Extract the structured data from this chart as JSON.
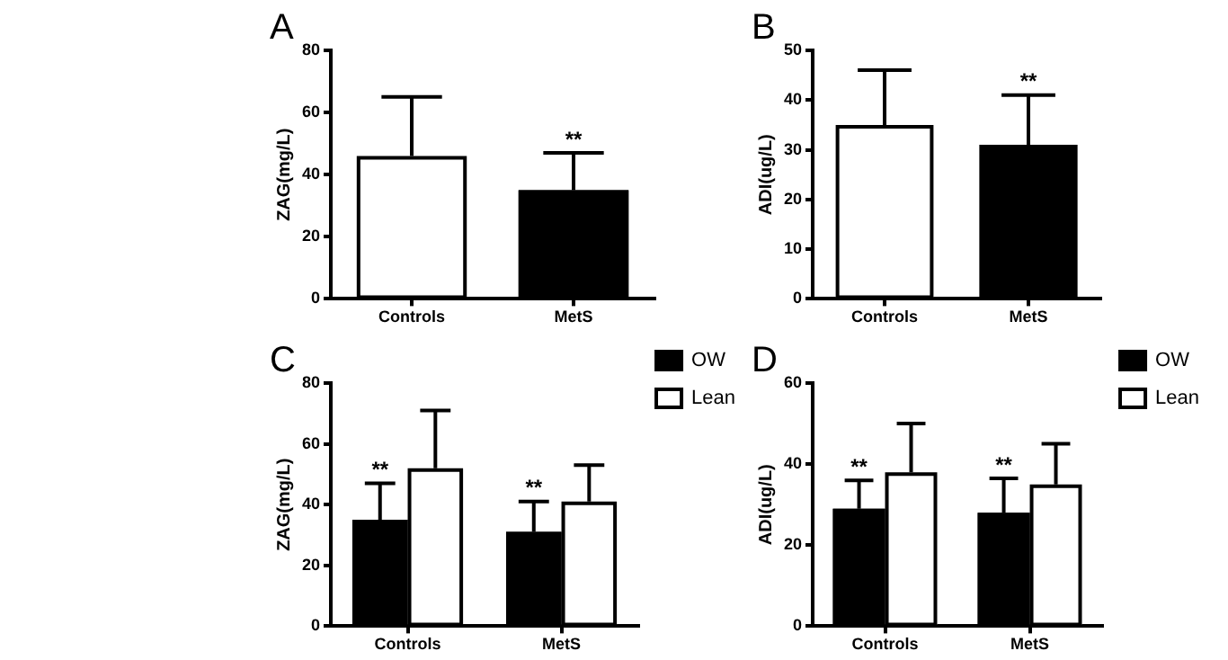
{
  "chart_data": [
    {
      "type": "bar",
      "title": "A",
      "ylabel": "ZAG(mg/L)",
      "categories": [
        "Controls",
        "MetS"
      ],
      "values": [
        46,
        35
      ],
      "colors": [
        "#ffffff",
        "#000000"
      ],
      "errors": [
        [
          46,
          65
        ],
        [
          35,
          47
        ]
      ],
      "ylim": [
        0,
        80
      ],
      "yticks": [
        0,
        20,
        40,
        60,
        80
      ],
      "grid": false,
      "legend": false,
      "annotations": [
        {
          "text": "**",
          "x": "MetS",
          "y": 47
        }
      ]
    },
    {
      "type": "bar",
      "title": "B",
      "ylabel": "ADI(ug/L)",
      "categories": [
        "Controls",
        "MetS"
      ],
      "values": [
        35,
        31
      ],
      "colors": [
        "#ffffff",
        "#000000"
      ],
      "errors": [
        [
          35,
          46
        ],
        [
          31,
          41
        ]
      ],
      "ylim": [
        0,
        50
      ],
      "yticks": [
        0,
        10,
        20,
        30,
        40,
        50
      ],
      "grid": false,
      "legend": false,
      "annotations": [
        {
          "text": "**",
          "x": "MetS",
          "y": 41
        }
      ]
    },
    {
      "type": "bar",
      "title": "C",
      "ylabel": "ZAG(mg/L)",
      "categories": [
        "Controls",
        "MetS"
      ],
      "series": [
        {
          "name": "OW",
          "color": "#000000",
          "values": [
            35,
            31
          ],
          "errors": [
            [
              35,
              47
            ],
            [
              31,
              41
            ]
          ]
        },
        {
          "name": "Lean",
          "color": "#ffffff",
          "values": [
            52,
            41
          ],
          "errors": [
            [
              52,
              71
            ],
            [
              41,
              53
            ]
          ]
        }
      ],
      "ylim": [
        0,
        80
      ],
      "yticks": [
        0,
        20,
        40,
        60,
        80
      ],
      "grid": false,
      "legend": "top right",
      "annotations": [
        {
          "text": "**",
          "x": "Controls",
          "y": 47
        },
        {
          "text": "**",
          "x": "MetS",
          "y": 41
        }
      ]
    },
    {
      "type": "bar",
      "title": "D",
      "ylabel": "ADI(ug/L)",
      "categories": [
        "Controls",
        "MetS"
      ],
      "series": [
        {
          "name": "OW",
          "color": "#000000",
          "values": [
            29,
            28
          ],
          "errors": [
            [
              29,
              36
            ],
            [
              28,
              36.5
            ]
          ]
        },
        {
          "name": "Lean",
          "color": "#ffffff",
          "values": [
            38,
            35
          ],
          "errors": [
            [
              38,
              50
            ],
            [
              35,
              45
            ]
          ]
        }
      ],
      "ylim": [
        0,
        60
      ],
      "yticks": [
        0,
        20,
        40,
        60
      ],
      "grid": false,
      "legend": "top right",
      "annotations": [
        {
          "text": "**",
          "x": "Controls",
          "y": 36
        },
        {
          "text": "**",
          "x": "MetS",
          "y": 36.5
        }
      ]
    }
  ]
}
